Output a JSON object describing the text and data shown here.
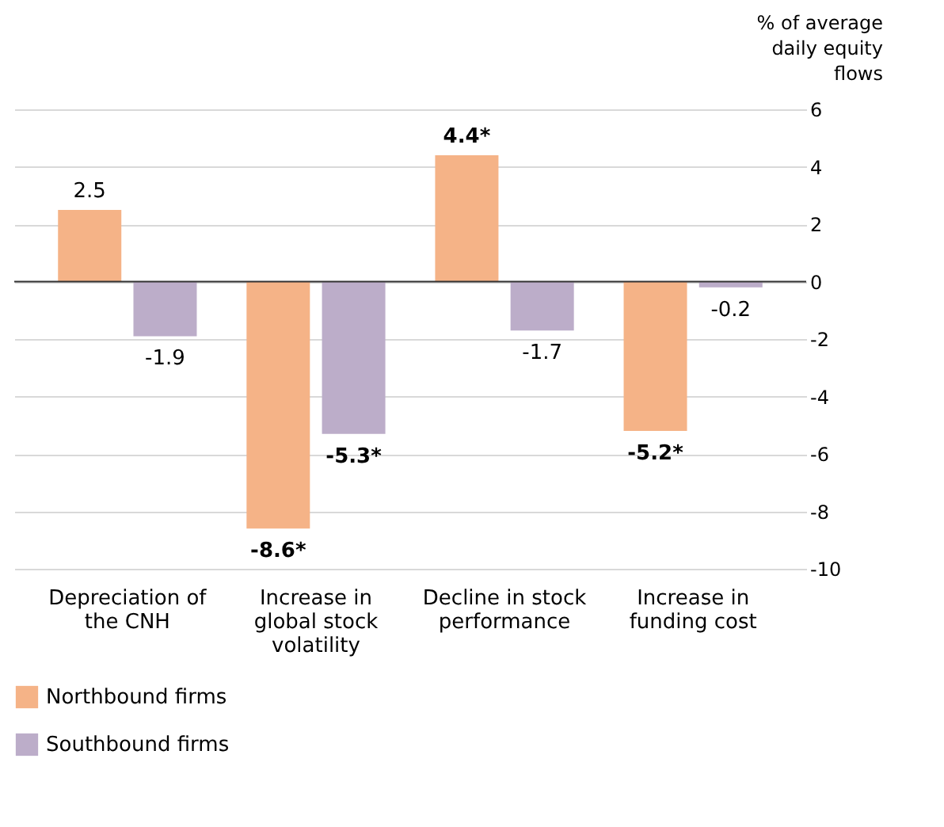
{
  "chart_data": {
    "type": "bar",
    "categories": [
      "Depreciation of the CNH",
      "Increase in global stock volatility",
      "Decline in stock performance",
      "Increase in funding cost"
    ],
    "series": [
      {
        "name": "Northbound firms",
        "color": "#f5b387",
        "values": [
          2.5,
          -8.6,
          4.4,
          -5.2
        ],
        "value_labels": [
          "2.5",
          "-8.6*",
          "4.4*",
          "-5.2*"
        ]
      },
      {
        "name": "Southbound firms",
        "color": "#bcadc9",
        "values": [
          -1.9,
          -5.3,
          -1.7,
          -0.2
        ],
        "value_labels": [
          "-1.9",
          "-5.3*",
          "-1.7",
          "-0.2"
        ]
      }
    ],
    "ylabel": "% of average daily equity flows",
    "ylim": [
      -10,
      6
    ],
    "yticks": [
      -10,
      -8,
      -6,
      -4,
      -2,
      0,
      2,
      4,
      6
    ],
    "grid": "y",
    "legend": "bottom left"
  }
}
